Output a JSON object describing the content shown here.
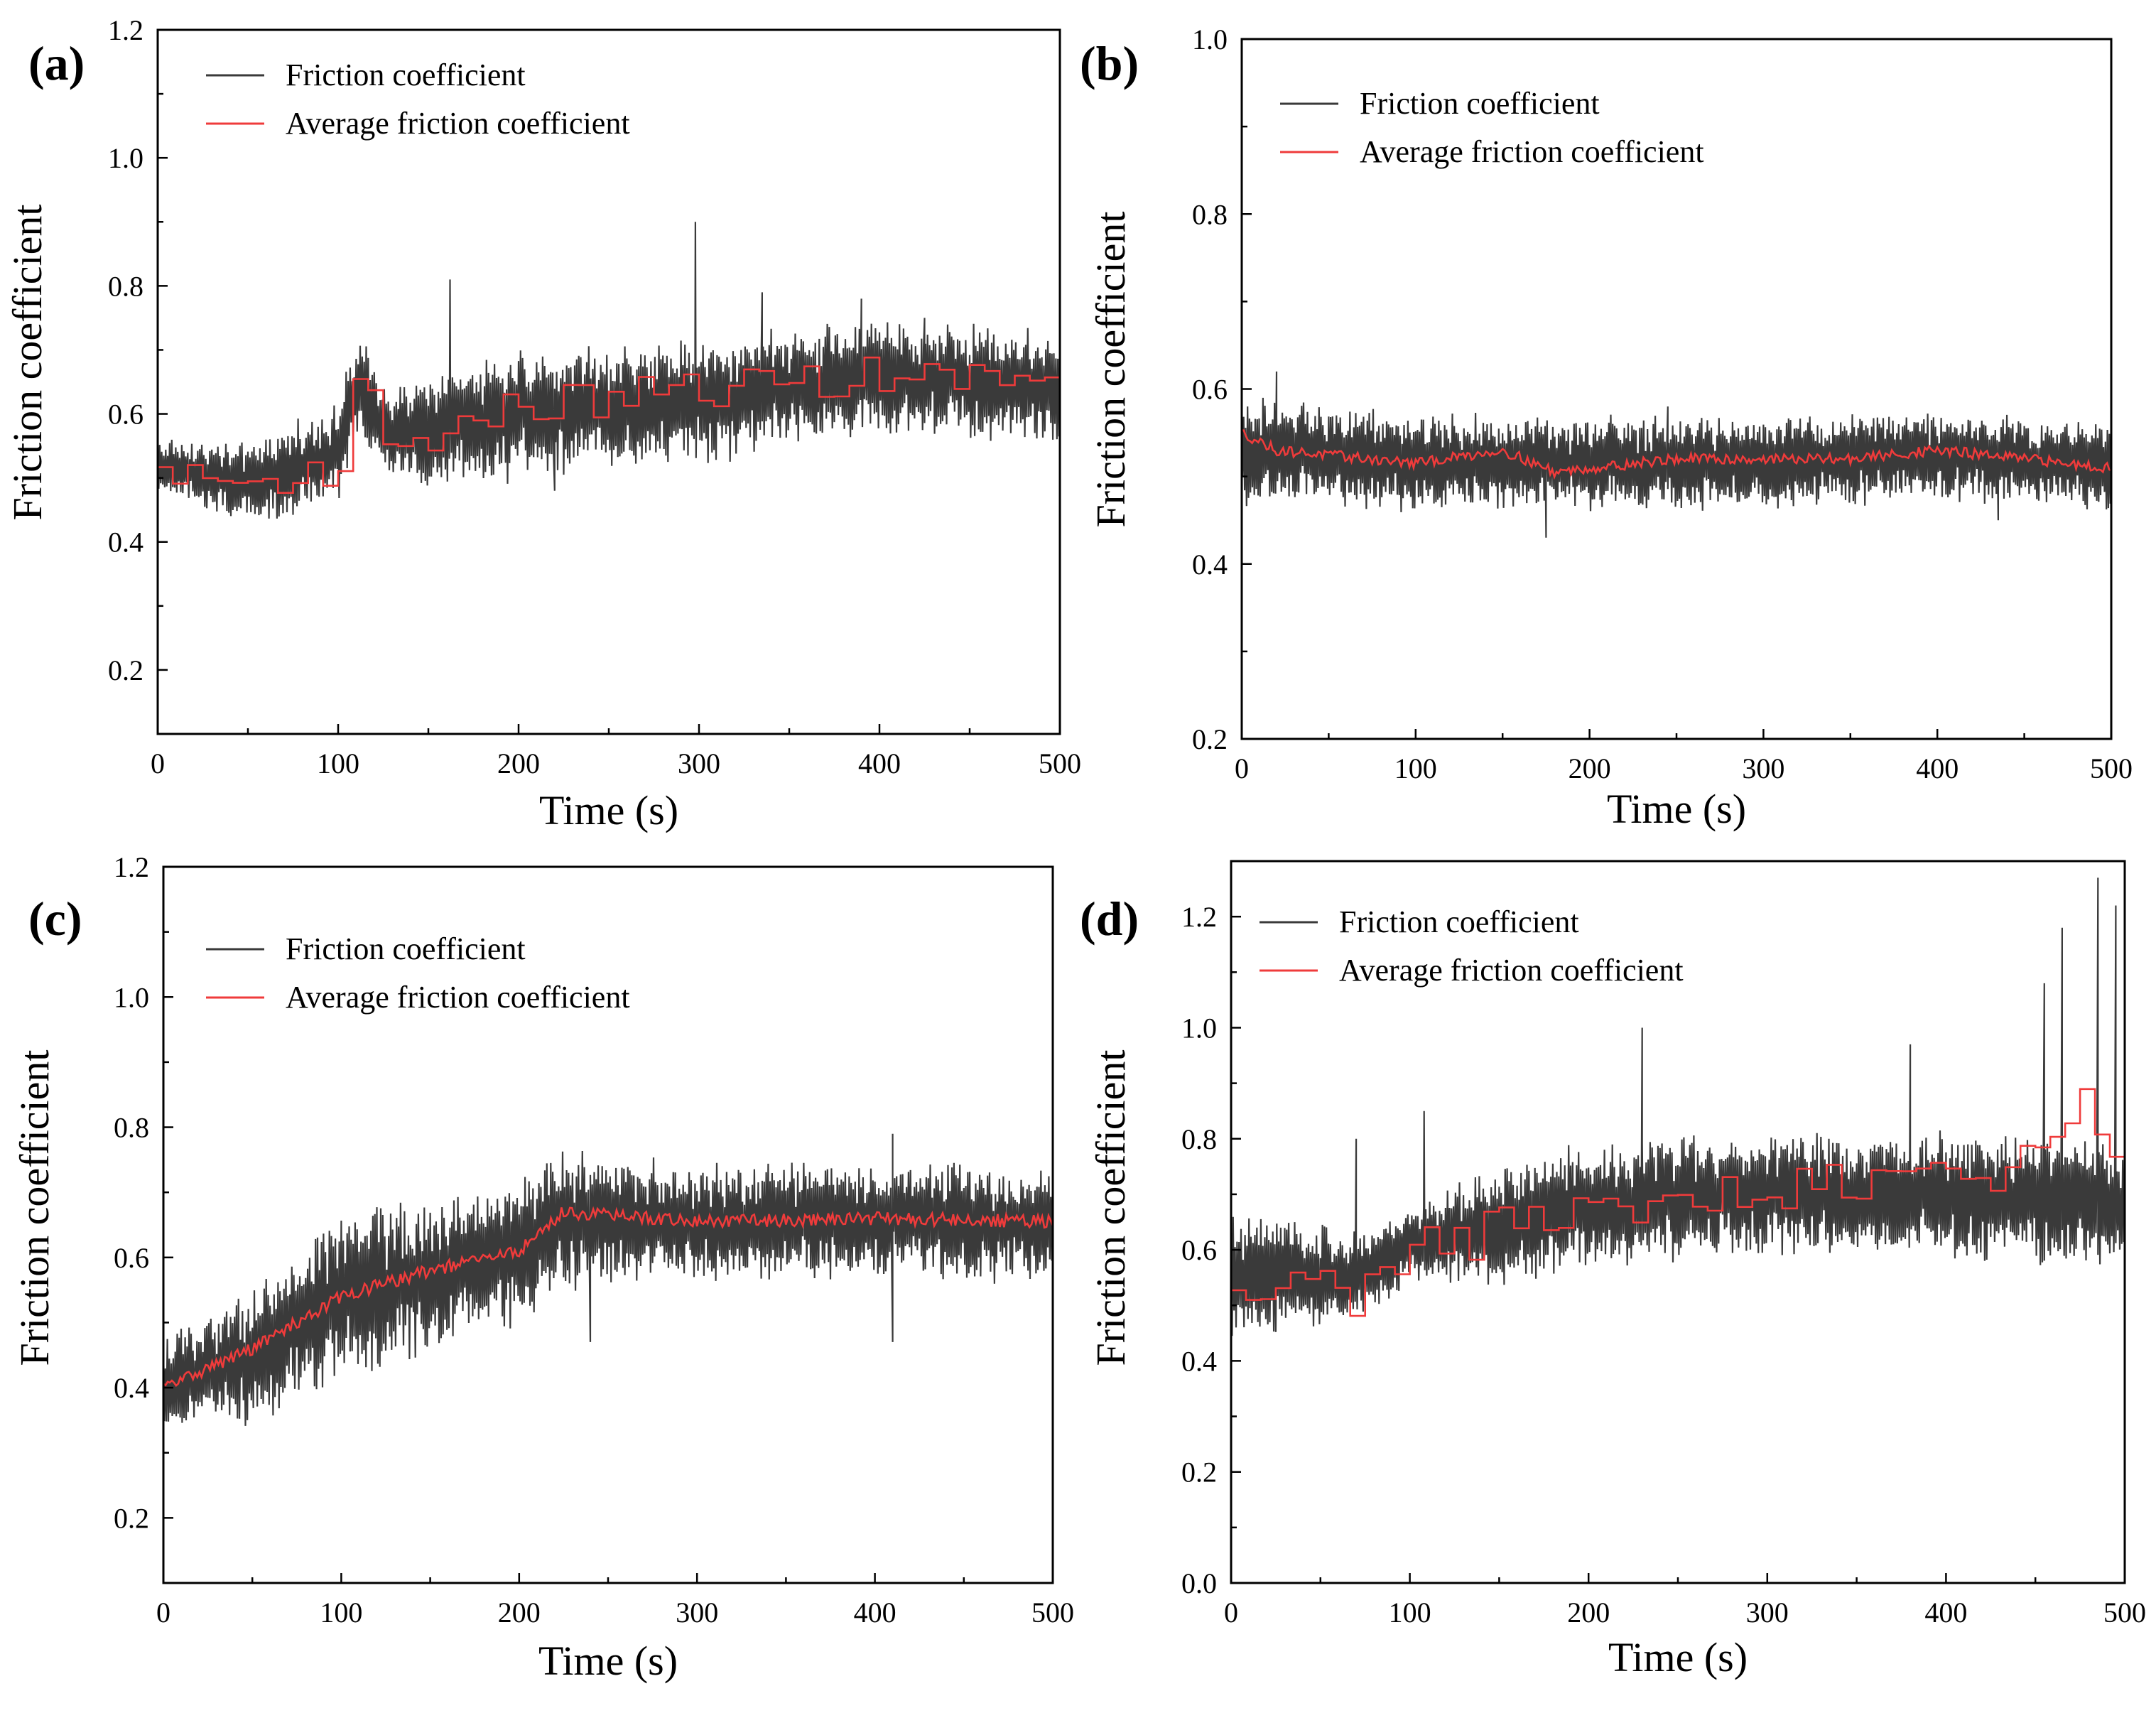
{
  "figure": {
    "description_free": true
  },
  "colors": {
    "friction": "#3a3a3a",
    "average": "#ef3b3b",
    "axis": "#000000"
  },
  "chart_data": [
    {
      "id": "a",
      "panel_label": "(a)",
      "type": "line",
      "xlabel": "Time (s)",
      "ylabel": "Friction coefficient",
      "xlim": [
        0,
        500
      ],
      "ylim": [
        0.1,
        1.2
      ],
      "xticks": [
        0,
        100,
        200,
        300,
        400,
        500
      ],
      "yticks": [
        0.2,
        0.4,
        0.6,
        0.8,
        1.0,
        1.2
      ],
      "ytick_labels": [
        "0.2",
        "0.4",
        "0.6",
        "0.8",
        "1.0",
        "1.2"
      ],
      "legend": [
        "Friction coefficient",
        "Average friction coefficient"
      ],
      "legend_position": "top-left",
      "series": [
        {
          "name": "Friction coefficient",
          "style": "oscillating",
          "trend": [
            [
              0,
              0.52
            ],
            [
              50,
              0.49
            ],
            [
              100,
              0.54
            ],
            [
              110,
              0.64
            ],
            [
              130,
              0.56
            ],
            [
              200,
              0.6
            ],
            [
              300,
              0.62
            ],
            [
              400,
              0.66
            ],
            [
              500,
              0.64
            ]
          ],
          "amplitude": [
            [
              0,
              0.04
            ],
            [
              100,
              0.07
            ],
            [
              200,
              0.09
            ],
            [
              500,
              0.08
            ]
          ],
          "spikes": [
            [
              162,
              0.81
            ],
            [
              298,
              0.9
            ],
            [
              335,
              0.79
            ],
            [
              390,
              0.78
            ],
            [
              425,
              0.75
            ],
            [
              220,
              0.48
            ]
          ]
        },
        {
          "name": "Average friction coefficient",
          "style": "step",
          "trend": [
            [
              0,
              0.51
            ],
            [
              50,
              0.49
            ],
            [
              100,
              0.52
            ],
            [
              110,
              0.65
            ],
            [
              130,
              0.55
            ],
            [
              200,
              0.61
            ],
            [
              300,
              0.64
            ],
            [
              400,
              0.66
            ],
            [
              500,
              0.65
            ]
          ],
          "amplitude": [
            [
              0,
              0.015
            ],
            [
              100,
              0.03
            ],
            [
              500,
              0.03
            ]
          ]
        }
      ]
    },
    {
      "id": "b",
      "panel_label": "(b)",
      "type": "line",
      "xlabel": "Time (s)",
      "ylabel": "Friction coefficient",
      "xlim": [
        0,
        500
      ],
      "ylim": [
        0.2,
        1.0
      ],
      "xticks": [
        0,
        100,
        200,
        300,
        400,
        500
      ],
      "yticks": [
        0.2,
        0.4,
        0.6,
        0.8,
        1.0
      ],
      "ytick_labels": [
        "0.2",
        "0.4",
        "0.6",
        "0.8",
        "1.0"
      ],
      "legend": [
        "Friction coefficient",
        "Average friction coefficient"
      ],
      "legend_position": "top-left",
      "series": [
        {
          "name": "Friction coefficient",
          "style": "oscillating",
          "trend": [
            [
              0,
              0.52
            ],
            [
              20,
              0.53
            ],
            [
              100,
              0.515
            ],
            [
              200,
              0.515
            ],
            [
              300,
              0.515
            ],
            [
              400,
              0.525
            ],
            [
              500,
              0.51
            ]
          ],
          "amplitude": [
            [
              0,
              0.06
            ],
            [
              30,
              0.05
            ],
            [
              500,
              0.045
            ]
          ],
          "spikes": [
            [
              20,
              0.62
            ],
            [
              245,
              0.58
            ],
            [
              175,
              0.43
            ],
            [
              435,
              0.45
            ]
          ]
        },
        {
          "name": "Average friction coefficient",
          "style": "smooth",
          "trend": [
            [
              0,
              0.55
            ],
            [
              20,
              0.53
            ],
            [
              100,
              0.515
            ],
            [
              150,
              0.53
            ],
            [
              180,
              0.505
            ],
            [
              250,
              0.52
            ],
            [
              350,
              0.52
            ],
            [
              400,
              0.53
            ],
            [
              500,
              0.51
            ]
          ],
          "amplitude": [
            [
              0,
              0.006
            ],
            [
              500,
              0.006
            ]
          ]
        }
      ]
    },
    {
      "id": "c",
      "panel_label": "(c)",
      "type": "line",
      "xlabel": "Time (s)",
      "ylabel": "Friction coefficient",
      "xlim": [
        0,
        500
      ],
      "ylim": [
        0.1,
        1.2
      ],
      "xticks": [
        0,
        100,
        200,
        300,
        400,
        500
      ],
      "yticks": [
        0.2,
        0.4,
        0.6,
        0.8,
        1.0,
        1.2
      ],
      "ytick_labels": [
        "0.2",
        "0.4",
        "0.6",
        "0.8",
        "1.0",
        "1.2"
      ],
      "legend": [
        "Friction coefficient",
        "Average friction coefficient"
      ],
      "legend_position": "top-left",
      "series": [
        {
          "name": "Friction coefficient",
          "style": "oscillating",
          "trend": [
            [
              0,
              0.4
            ],
            [
              50,
              0.45
            ],
            [
              100,
              0.54
            ],
            [
              150,
              0.57
            ],
            [
              200,
              0.61
            ],
            [
              225,
              0.66
            ],
            [
              300,
              0.65
            ],
            [
              400,
              0.66
            ],
            [
              500,
              0.65
            ]
          ],
          "amplitude": [
            [
              0,
              0.07
            ],
            [
              100,
              0.12
            ],
            [
              200,
              0.1
            ],
            [
              300,
              0.08
            ],
            [
              500,
              0.08
            ]
          ],
          "spikes": [
            [
              240,
              0.47
            ],
            [
              410,
              0.79
            ],
            [
              410,
              0.47
            ]
          ]
        },
        {
          "name": "Average friction coefficient",
          "style": "smooth",
          "trend": [
            [
              0,
              0.4
            ],
            [
              50,
              0.46
            ],
            [
              100,
              0.54
            ],
            [
              150,
              0.58
            ],
            [
              200,
              0.61
            ],
            [
              225,
              0.67
            ],
            [
              300,
              0.655
            ],
            [
              400,
              0.66
            ],
            [
              500,
              0.655
            ]
          ],
          "amplitude": [
            [
              0,
              0.01
            ],
            [
              500,
              0.01
            ]
          ]
        }
      ]
    },
    {
      "id": "d",
      "panel_label": "(d)",
      "type": "line",
      "xlabel": "Time (s)",
      "ylabel": "Friction coefficient",
      "xlim": [
        0,
        500
      ],
      "ylim": [
        0.0,
        1.3
      ],
      "xticks": [
        0,
        100,
        200,
        300,
        400,
        500
      ],
      "yticks": [
        0.0,
        0.2,
        0.4,
        0.6,
        0.8,
        1.0,
        1.2
      ],
      "ytick_labels": [
        "0.0",
        "0.2",
        "0.4",
        "0.6",
        "0.8",
        "1.0",
        "1.2"
      ],
      "legend": [
        "Friction coefficient",
        "Average friction coefficient"
      ],
      "legend_position": "top-left",
      "series": [
        {
          "name": "Friction coefficient",
          "style": "oscillating",
          "trend": [
            [
              0,
              0.56
            ],
            [
              70,
              0.55
            ],
            [
              100,
              0.61
            ],
            [
              200,
              0.68
            ],
            [
              300,
              0.7
            ],
            [
              400,
              0.7
            ],
            [
              500,
              0.68
            ]
          ],
          "amplitude": [
            [
              0,
              0.1
            ],
            [
              100,
              0.06
            ],
            [
              150,
              0.1
            ],
            [
              500,
              0.1
            ]
          ],
          "spikes": [
            [
              70,
              0.8
            ],
            [
              108,
              0.85
            ],
            [
              230,
              1.0
            ],
            [
              380,
              0.97
            ],
            [
              465,
              1.18
            ],
            [
              485,
              1.27
            ],
            [
              455,
              1.08
            ],
            [
              495,
              1.22
            ]
          ]
        },
        {
          "name": "Average friction coefficient",
          "style": "step",
          "trend": [
            [
              0,
              0.5
            ],
            [
              50,
              0.6
            ],
            [
              70,
              0.5
            ],
            [
              100,
              0.6
            ],
            [
              200,
              0.67
            ],
            [
              300,
              0.7
            ],
            [
              400,
              0.72
            ],
            [
              450,
              0.78
            ],
            [
              470,
              0.87
            ],
            [
              500,
              0.75
            ]
          ],
          "amplitude": [
            [
              0,
              0.04
            ],
            [
              500,
              0.05
            ]
          ]
        }
      ]
    }
  ]
}
